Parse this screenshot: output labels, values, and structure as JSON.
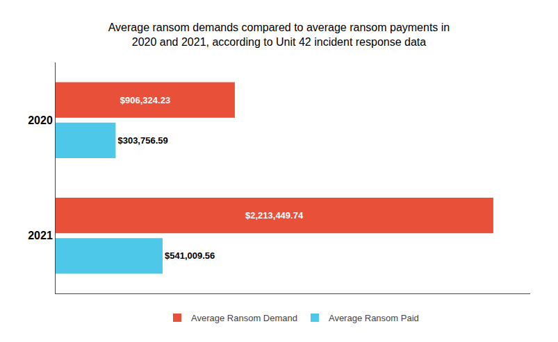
{
  "chart_data": {
    "type": "bar",
    "orientation": "horizontal",
    "title": "Average ransom demands compared to average ransom payments in\n2020 and 2021, according to Unit 42 incident response data",
    "categories": [
      "2020",
      "2021"
    ],
    "series": [
      {
        "name": "Average Ransom Demand",
        "color": "#E8503A",
        "values": [
          906324.23,
          2213449.74
        ],
        "value_labels": [
          "$906,324.23",
          "$2,213,449.74"
        ]
      },
      {
        "name": "Average Ransom Paid",
        "color": "#4DC8E8",
        "values": [
          303756.59,
          541009.56
        ],
        "value_labels": [
          "$303,756.59",
          "$541,009.56"
        ]
      }
    ],
    "xlim": [
      0,
      2400000
    ],
    "data_labels": true,
    "tick_labels": "y",
    "grid": false,
    "legend": "bottom"
  }
}
